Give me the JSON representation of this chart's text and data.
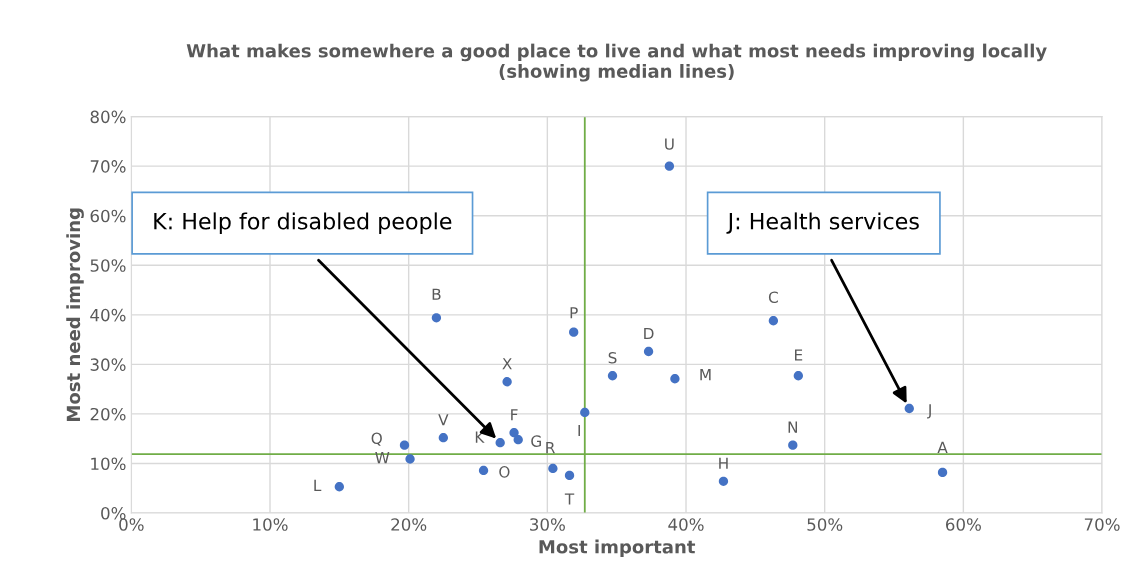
{
  "chart_data": {
    "type": "scatter",
    "title": "What makes somewhere a good place to live and what most needs improving locally\n(showing median lines)",
    "xlabel": "Most important",
    "ylabel": "Most need improving",
    "x": [
      15.0,
      20.1,
      19.7,
      22.5,
      22.0,
      25.4,
      26.6,
      27.1,
      27.6,
      27.9,
      30.4,
      31.6,
      31.9,
      32.7,
      34.7,
      37.3,
      39.2,
      38.8,
      46.3,
      48.1,
      47.7,
      42.7,
      56.1,
      58.5
    ],
    "values": [
      5.3,
      10.9,
      13.7,
      15.2,
      39.4,
      8.6,
      14.2,
      26.5,
      16.2,
      14.8,
      9.0,
      7.6,
      36.5,
      20.3,
      27.7,
      32.6,
      27.1,
      70.0,
      38.8,
      27.7,
      13.7,
      6.4,
      21.1,
      8.2
    ],
    "value_labels": [
      "L",
      "W",
      "Q",
      "V",
      "B",
      "O",
      "K",
      "X",
      "F",
      "G",
      "R",
      "T",
      "P",
      "I",
      "S",
      "D",
      "M",
      "U",
      "C",
      "E",
      "N",
      "H",
      "J",
      "A"
    ],
    "color": "#4472c4",
    "marker": "circle",
    "xlim": [
      0,
      70
    ],
    "ylim": [
      0,
      80
    ],
    "xticks": [
      {
        "value": 0,
        "label": "0%"
      },
      {
        "value": 10,
        "label": "10%"
      },
      {
        "value": 20,
        "label": "20%"
      },
      {
        "value": 30,
        "label": "30%"
      },
      {
        "value": 40,
        "label": "40%"
      },
      {
        "value": 50,
        "label": "50%"
      },
      {
        "value": 60,
        "label": "60%"
      },
      {
        "value": 70,
        "label": "70%"
      }
    ],
    "yticks": [
      {
        "value": 0,
        "label": "0%"
      },
      {
        "value": 10,
        "label": "10%"
      },
      {
        "value": 20,
        "label": "20%"
      },
      {
        "value": 30,
        "label": "30%"
      },
      {
        "value": 40,
        "label": "40%"
      },
      {
        "value": 50,
        "label": "50%"
      },
      {
        "value": 60,
        "label": "60%"
      },
      {
        "value": 70,
        "label": "70%"
      },
      {
        "value": 80,
        "label": "80%"
      }
    ],
    "grid": true,
    "ref_lines": [
      {
        "axis": "x",
        "value": 32.7,
        "color": "#70ad47"
      },
      {
        "axis": "y",
        "value": 11.9,
        "color": "#70ad47"
      }
    ],
    "annotations": [
      {
        "text": "K: Help for disabled people",
        "x": 26.6,
        "y": 14.2
      },
      {
        "text": "J: Health services",
        "x": 56.1,
        "y": 21.1
      }
    ]
  }
}
